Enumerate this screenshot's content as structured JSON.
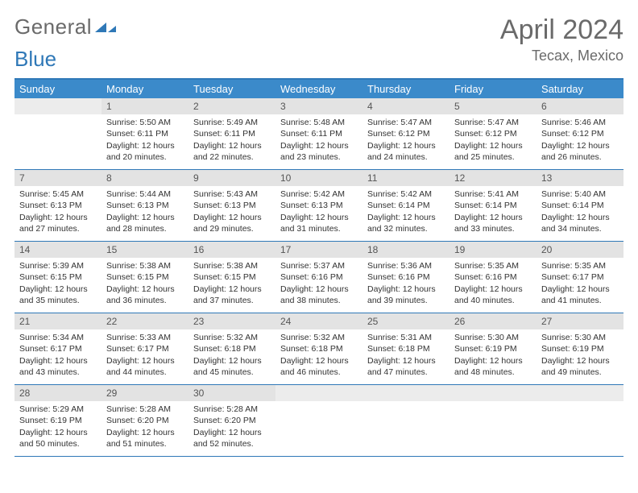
{
  "logo": {
    "line1": "General",
    "line2": "Blue"
  },
  "title": "April 2024",
  "location": "Tecax, Mexico",
  "colors": {
    "header_bg": "#3b8aca",
    "border": "#2f78b7",
    "daynum_bg": "#e3e3e3",
    "text_muted": "#6a6a6a"
  },
  "day_names": [
    "Sunday",
    "Monday",
    "Tuesday",
    "Wednesday",
    "Thursday",
    "Friday",
    "Saturday"
  ],
  "weeks": [
    [
      {
        "n": "",
        "sr": "",
        "ss": "",
        "dl": ""
      },
      {
        "n": "1",
        "sr": "Sunrise: 5:50 AM",
        "ss": "Sunset: 6:11 PM",
        "dl": "Daylight: 12 hours and 20 minutes."
      },
      {
        "n": "2",
        "sr": "Sunrise: 5:49 AM",
        "ss": "Sunset: 6:11 PM",
        "dl": "Daylight: 12 hours and 22 minutes."
      },
      {
        "n": "3",
        "sr": "Sunrise: 5:48 AM",
        "ss": "Sunset: 6:11 PM",
        "dl": "Daylight: 12 hours and 23 minutes."
      },
      {
        "n": "4",
        "sr": "Sunrise: 5:47 AM",
        "ss": "Sunset: 6:12 PM",
        "dl": "Daylight: 12 hours and 24 minutes."
      },
      {
        "n": "5",
        "sr": "Sunrise: 5:47 AM",
        "ss": "Sunset: 6:12 PM",
        "dl": "Daylight: 12 hours and 25 minutes."
      },
      {
        "n": "6",
        "sr": "Sunrise: 5:46 AM",
        "ss": "Sunset: 6:12 PM",
        "dl": "Daylight: 12 hours and 26 minutes."
      }
    ],
    [
      {
        "n": "7",
        "sr": "Sunrise: 5:45 AM",
        "ss": "Sunset: 6:13 PM",
        "dl": "Daylight: 12 hours and 27 minutes."
      },
      {
        "n": "8",
        "sr": "Sunrise: 5:44 AM",
        "ss": "Sunset: 6:13 PM",
        "dl": "Daylight: 12 hours and 28 minutes."
      },
      {
        "n": "9",
        "sr": "Sunrise: 5:43 AM",
        "ss": "Sunset: 6:13 PM",
        "dl": "Daylight: 12 hours and 29 minutes."
      },
      {
        "n": "10",
        "sr": "Sunrise: 5:42 AM",
        "ss": "Sunset: 6:13 PM",
        "dl": "Daylight: 12 hours and 31 minutes."
      },
      {
        "n": "11",
        "sr": "Sunrise: 5:42 AM",
        "ss": "Sunset: 6:14 PM",
        "dl": "Daylight: 12 hours and 32 minutes."
      },
      {
        "n": "12",
        "sr": "Sunrise: 5:41 AM",
        "ss": "Sunset: 6:14 PM",
        "dl": "Daylight: 12 hours and 33 minutes."
      },
      {
        "n": "13",
        "sr": "Sunrise: 5:40 AM",
        "ss": "Sunset: 6:14 PM",
        "dl": "Daylight: 12 hours and 34 minutes."
      }
    ],
    [
      {
        "n": "14",
        "sr": "Sunrise: 5:39 AM",
        "ss": "Sunset: 6:15 PM",
        "dl": "Daylight: 12 hours and 35 minutes."
      },
      {
        "n": "15",
        "sr": "Sunrise: 5:38 AM",
        "ss": "Sunset: 6:15 PM",
        "dl": "Daylight: 12 hours and 36 minutes."
      },
      {
        "n": "16",
        "sr": "Sunrise: 5:38 AM",
        "ss": "Sunset: 6:15 PM",
        "dl": "Daylight: 12 hours and 37 minutes."
      },
      {
        "n": "17",
        "sr": "Sunrise: 5:37 AM",
        "ss": "Sunset: 6:16 PM",
        "dl": "Daylight: 12 hours and 38 minutes."
      },
      {
        "n": "18",
        "sr": "Sunrise: 5:36 AM",
        "ss": "Sunset: 6:16 PM",
        "dl": "Daylight: 12 hours and 39 minutes."
      },
      {
        "n": "19",
        "sr": "Sunrise: 5:35 AM",
        "ss": "Sunset: 6:16 PM",
        "dl": "Daylight: 12 hours and 40 minutes."
      },
      {
        "n": "20",
        "sr": "Sunrise: 5:35 AM",
        "ss": "Sunset: 6:17 PM",
        "dl": "Daylight: 12 hours and 41 minutes."
      }
    ],
    [
      {
        "n": "21",
        "sr": "Sunrise: 5:34 AM",
        "ss": "Sunset: 6:17 PM",
        "dl": "Daylight: 12 hours and 43 minutes."
      },
      {
        "n": "22",
        "sr": "Sunrise: 5:33 AM",
        "ss": "Sunset: 6:17 PM",
        "dl": "Daylight: 12 hours and 44 minutes."
      },
      {
        "n": "23",
        "sr": "Sunrise: 5:32 AM",
        "ss": "Sunset: 6:18 PM",
        "dl": "Daylight: 12 hours and 45 minutes."
      },
      {
        "n": "24",
        "sr": "Sunrise: 5:32 AM",
        "ss": "Sunset: 6:18 PM",
        "dl": "Daylight: 12 hours and 46 minutes."
      },
      {
        "n": "25",
        "sr": "Sunrise: 5:31 AM",
        "ss": "Sunset: 6:18 PM",
        "dl": "Daylight: 12 hours and 47 minutes."
      },
      {
        "n": "26",
        "sr": "Sunrise: 5:30 AM",
        "ss": "Sunset: 6:19 PM",
        "dl": "Daylight: 12 hours and 48 minutes."
      },
      {
        "n": "27",
        "sr": "Sunrise: 5:30 AM",
        "ss": "Sunset: 6:19 PM",
        "dl": "Daylight: 12 hours and 49 minutes."
      }
    ],
    [
      {
        "n": "28",
        "sr": "Sunrise: 5:29 AM",
        "ss": "Sunset: 6:19 PM",
        "dl": "Daylight: 12 hours and 50 minutes."
      },
      {
        "n": "29",
        "sr": "Sunrise: 5:28 AM",
        "ss": "Sunset: 6:20 PM",
        "dl": "Daylight: 12 hours and 51 minutes."
      },
      {
        "n": "30",
        "sr": "Sunrise: 5:28 AM",
        "ss": "Sunset: 6:20 PM",
        "dl": "Daylight: 12 hours and 52 minutes."
      },
      {
        "n": "",
        "sr": "",
        "ss": "",
        "dl": ""
      },
      {
        "n": "",
        "sr": "",
        "ss": "",
        "dl": ""
      },
      {
        "n": "",
        "sr": "",
        "ss": "",
        "dl": ""
      },
      {
        "n": "",
        "sr": "",
        "ss": "",
        "dl": ""
      }
    ]
  ]
}
